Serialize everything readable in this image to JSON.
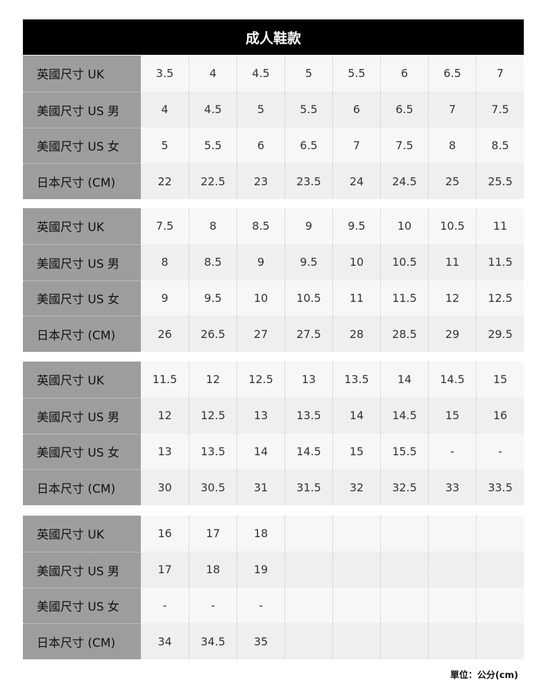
{
  "title": "成人鞋款",
  "row_labels": [
    "英國尺寸 UK",
    "美國尺寸 US 男",
    "美國尺寸 US 女",
    "日本尺寸 (CM)"
  ],
  "blocks": [
    {
      "rows": [
        [
          "3.5",
          "4",
          "4.5",
          "5",
          "5.5",
          "6",
          "6.5",
          "7"
        ],
        [
          "4",
          "4.5",
          "5",
          "5.5",
          "6",
          "6.5",
          "7",
          "7.5"
        ],
        [
          "5",
          "5.5",
          "6",
          "6.5",
          "7",
          "7.5",
          "8",
          "8.5"
        ],
        [
          "22",
          "22.5",
          "23",
          "23.5",
          "24",
          "24.5",
          "25",
          "25.5"
        ]
      ]
    },
    {
      "rows": [
        [
          "7.5",
          "8",
          "8.5",
          "9",
          "9.5",
          "10",
          "10.5",
          "11"
        ],
        [
          "8",
          "8.5",
          "9",
          "9.5",
          "10",
          "10.5",
          "11",
          "11.5"
        ],
        [
          "9",
          "9.5",
          "10",
          "10.5",
          "11",
          "11.5",
          "12",
          "12.5"
        ],
        [
          "26",
          "26.5",
          "27",
          "27.5",
          "28",
          "28.5",
          "29",
          "29.5"
        ]
      ]
    },
    {
      "rows": [
        [
          "11.5",
          "12",
          "12.5",
          "13",
          "13.5",
          "14",
          "14.5",
          "15"
        ],
        [
          "12",
          "12.5",
          "13",
          "13.5",
          "14",
          "14.5",
          "15",
          "16"
        ],
        [
          "13",
          "13.5",
          "14",
          "14.5",
          "15",
          "15.5",
          "-",
          "-"
        ],
        [
          "30",
          "30.5",
          "31",
          "31.5",
          "32",
          "32.5",
          "33",
          "33.5"
        ]
      ]
    },
    {
      "rows": [
        [
          "16",
          "17",
          "18",
          "",
          "",
          "",
          "",
          ""
        ],
        [
          "17",
          "18",
          "19",
          "",
          "",
          "",
          "",
          ""
        ],
        [
          "-",
          "-",
          "-",
          "",
          "",
          "",
          "",
          ""
        ],
        [
          "34",
          "34.5",
          "35",
          "",
          "",
          "",
          "",
          ""
        ]
      ]
    }
  ],
  "unit_note": "單位：公分(cm)"
}
